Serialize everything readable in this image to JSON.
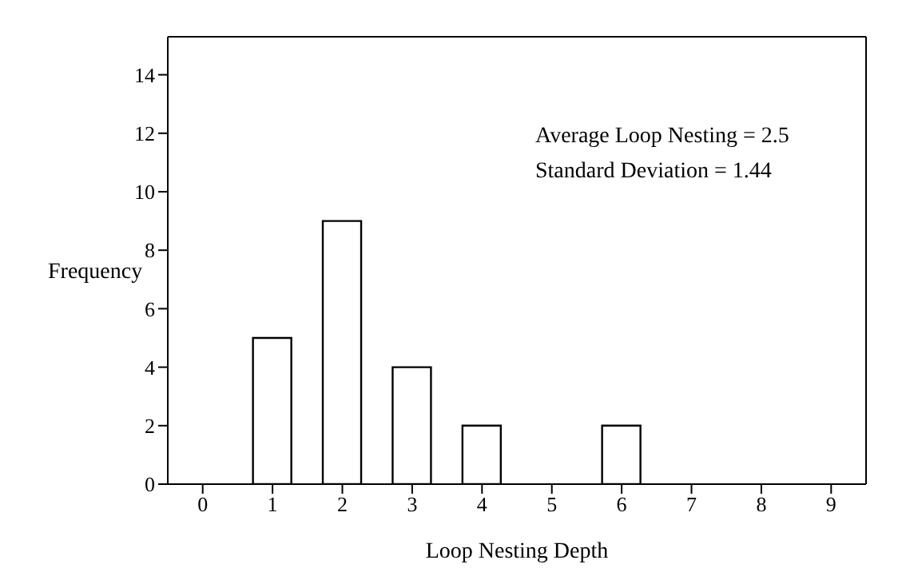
{
  "chart_data": {
    "type": "bar",
    "xlabel": "Loop Nesting Depth",
    "ylabel": "Frequency",
    "categories": [
      "0",
      "1",
      "2",
      "3",
      "4",
      "5",
      "6",
      "7",
      "8",
      "9"
    ],
    "values": [
      0,
      5,
      9,
      4,
      2,
      0,
      2,
      0,
      0,
      0
    ],
    "color": "#ffffff",
    "ylim": [
      0,
      15.3
    ],
    "yticks": [
      0,
      2,
      4,
      6,
      8,
      10,
      12,
      14
    ],
    "annotations": [
      "Average Loop Nesting = 2.5",
      "Standard Deviation = 1.44"
    ]
  }
}
